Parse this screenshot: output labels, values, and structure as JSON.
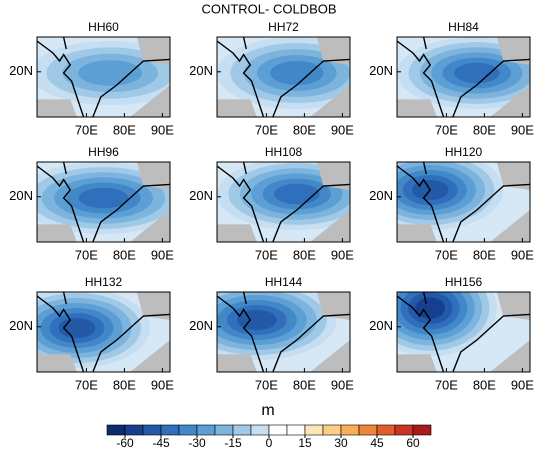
{
  "title": "CONTROL- COLDBOB",
  "panels": [
    {
      "title": "HH60"
    },
    {
      "title": "HH72"
    },
    {
      "title": "HH84"
    },
    {
      "title": "HH96"
    },
    {
      "title": "HH108"
    },
    {
      "title": "HH120"
    },
    {
      "title": "HH132"
    },
    {
      "title": "HH144"
    },
    {
      "title": "HH156"
    }
  ],
  "xlim": [
    57,
    92
  ],
  "ylim": [
    7,
    30
  ],
  "xticks": [
    {
      "value": 70,
      "label": "70E"
    },
    {
      "value": 80,
      "label": "80E"
    },
    {
      "value": 90,
      "label": "90E"
    }
  ],
  "yticks": [
    {
      "value": 20,
      "label": "20N"
    }
  ],
  "colorbar": {
    "label": "m",
    "ticks": [
      -60,
      -45,
      -30,
      -15,
      0,
      15,
      30,
      45,
      60
    ],
    "levels": [
      -67.5,
      -60,
      -52.5,
      -45,
      -37.5,
      -30,
      -22.5,
      -15,
      -7.5,
      0,
      7.5,
      15,
      22.5,
      30,
      37.5,
      45,
      52.5,
      60,
      67.5
    ],
    "colors": [
      "#0b2d6b",
      "#173f8f",
      "#2459a8",
      "#2f6fbb",
      "#4288c8",
      "#5c9fd4",
      "#7db4de",
      "#a0c9e7",
      "#c6def1",
      "#ffffff",
      "#ffffff",
      "#fde6b8",
      "#fbcf86",
      "#f7ae55",
      "#ef8636",
      "#e35d2a",
      "#cc3322",
      "#a91b1b"
    ]
  }
}
